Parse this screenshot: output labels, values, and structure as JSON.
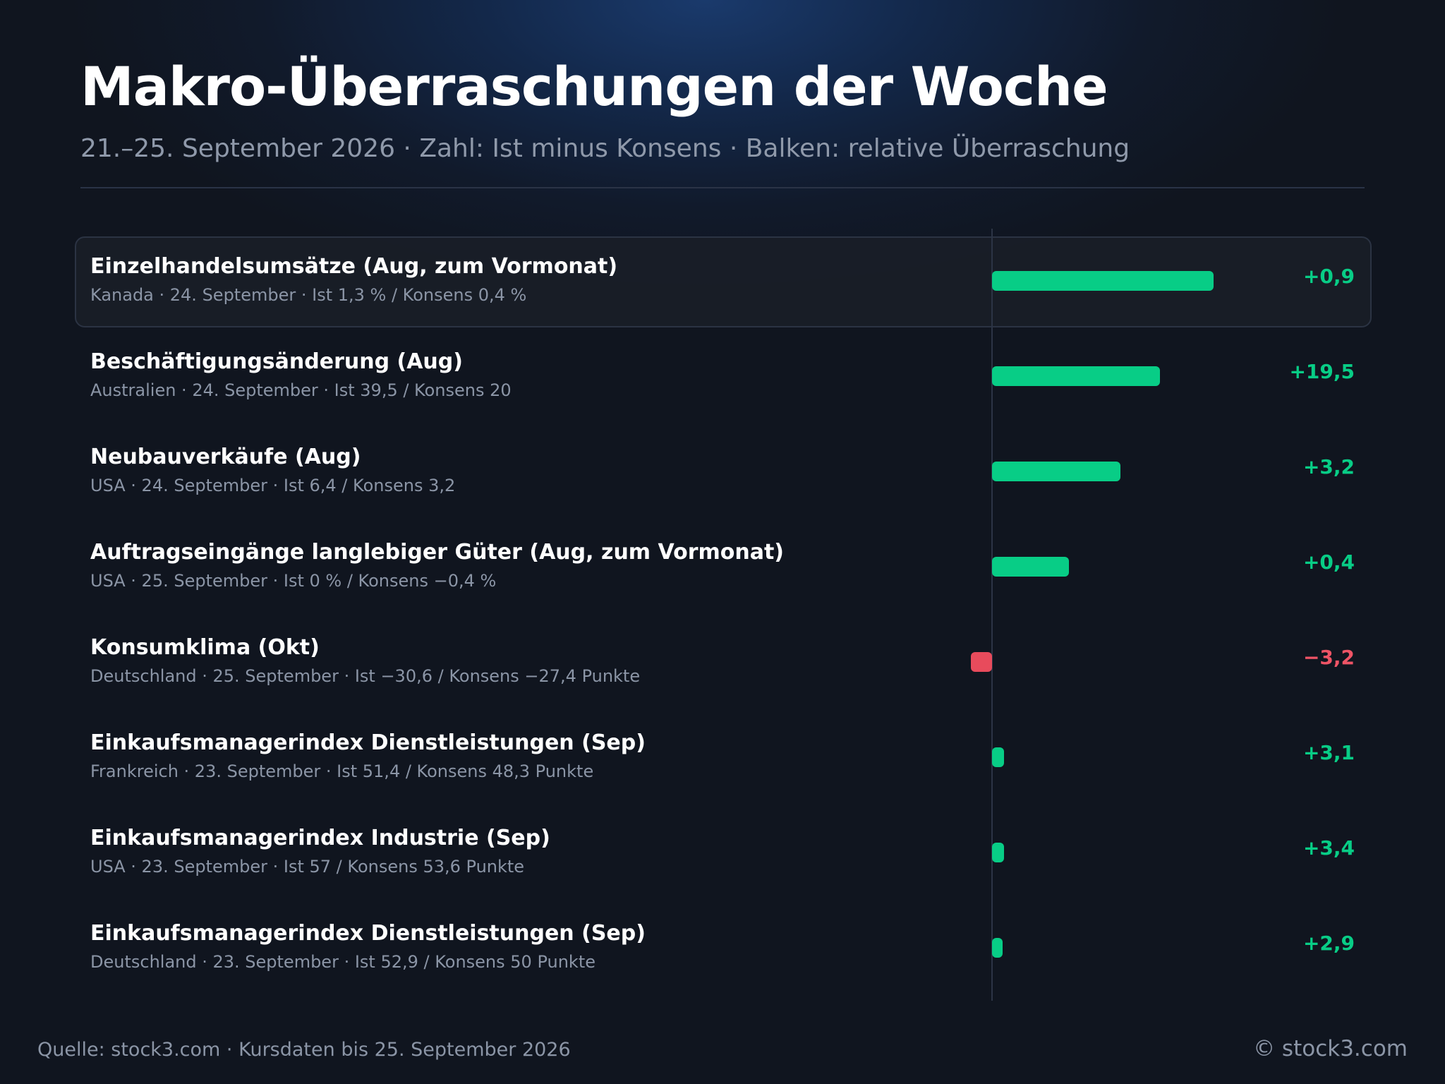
{
  "header": {
    "title": "Makro-Überraschungen der Woche",
    "subtitle": "21.–25. September 2026 · Zahl: Ist minus Konsens · Balken: relative Überraschung"
  },
  "colors": {
    "positive": "#08cd86",
    "negative": "#e84b5c",
    "background": "#10151f"
  },
  "chart_data": {
    "type": "bar",
    "orientation": "horizontal",
    "xlim": [
      -0.1,
      1.0
    ],
    "categories": [
      "Einzelhandelsumsätze (Aug, zum Vormonat)",
      "Beschäftigungsänderung (Aug)",
      "Neubauverkäufe (Aug)",
      "Auftragseingänge langlebiger Güter (Aug, zum Vormonat)",
      "Konsumklima (Okt)",
      "Einkaufsmanagerindex Dienstleistungen (Sep)",
      "Einkaufsmanagerindex Industrie (Sep)",
      "Einkaufsmanagerindex Dienstleistungen (Sep)"
    ],
    "rows": [
      {
        "title": "Einzelhandelsumsätze (Aug, zum Vormonat)",
        "meta": "Kanada · 24. September · Ist 1,3 % / Konsens 0,4 %",
        "value_label": "+0,9",
        "relative": 0.95,
        "highlighted": true
      },
      {
        "title": "Beschäftigungsänderung (Aug)",
        "meta": "Australien · 24. September · Ist 39,5 / Konsens 20",
        "value_label": "+19,5",
        "relative": 0.72,
        "highlighted": false
      },
      {
        "title": "Neubauverkäufe (Aug)",
        "meta": "USA · 24. September · Ist 6,4 / Konsens 3,2",
        "value_label": "+3,2",
        "relative": 0.55,
        "highlighted": false
      },
      {
        "title": "Auftragseingänge langlebiger Güter (Aug, zum Vormonat)",
        "meta": "USA · 25. September · Ist 0 % / Konsens −0,4 %",
        "value_label": "+0,4",
        "relative": 0.33,
        "highlighted": false
      },
      {
        "title": "Konsumklima (Okt)",
        "meta": "Deutschland · 25. September · Ist −30,6 / Konsens −27,4 Punkte",
        "value_label": "−3,2",
        "relative": -0.09,
        "highlighted": false
      },
      {
        "title": "Einkaufsmanagerindex Dienstleistungen (Sep)",
        "meta": "Frankreich · 23. September · Ist 51,4 / Konsens 48,3 Punkte",
        "value_label": "+3,1",
        "relative": 0.05,
        "highlighted": false
      },
      {
        "title": "Einkaufsmanagerindex Industrie (Sep)",
        "meta": "USA · 23. September · Ist 57 / Konsens 53,6 Punkte",
        "value_label": "+3,4",
        "relative": 0.05,
        "highlighted": false
      },
      {
        "title": "Einkaufsmanagerindex Dienstleistungen (Sep)",
        "meta": "Deutschland · 23. September · Ist 52,9 / Konsens 50 Punkte",
        "value_label": "+2,9",
        "relative": 0.045,
        "highlighted": false
      }
    ]
  },
  "footer": {
    "source": "Quelle: stock3.com · Kursdaten bis 25. September 2026",
    "copyright": "© stock3.com"
  }
}
